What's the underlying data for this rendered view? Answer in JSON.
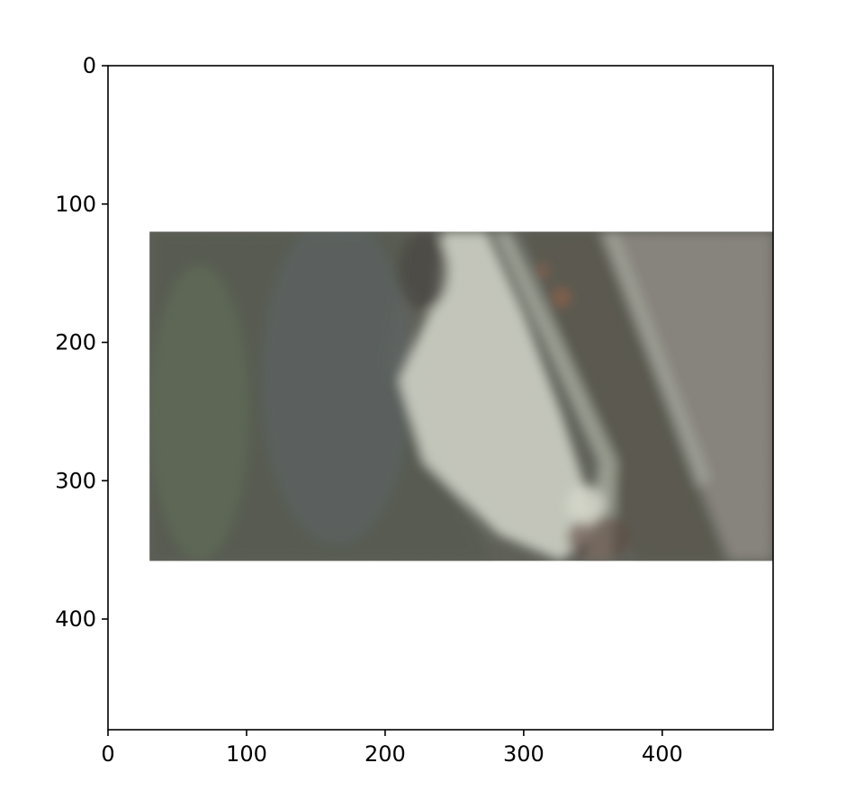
{
  "chart_data": {
    "type": "image",
    "title": "",
    "xlabel": "",
    "ylabel": "",
    "xlim": [
      0,
      480
    ],
    "ylim": [
      480,
      0
    ],
    "x_ticks": [
      0,
      100,
      200,
      300,
      400
    ],
    "y_ticks": [
      0,
      100,
      200,
      300,
      400
    ],
    "x_tick_labels": [
      "0",
      "100",
      "200",
      "300",
      "400"
    ],
    "y_tick_labels": [
      "0",
      "100",
      "200",
      "300",
      "400"
    ],
    "grid": false,
    "image_extent": {
      "x": [
        30,
        480
      ],
      "y": [
        120,
        358
      ]
    },
    "image_description": "grainy aerial patch with a diagonal pale light streak crossing dark greenish-grey ground and a grey strip on the right",
    "colors": {
      "dark_ground": "#5b5d55",
      "pale_streak": "#d8dbcf",
      "grey_strip": "#8a8680",
      "rust_accent": "#8c5c45"
    }
  }
}
